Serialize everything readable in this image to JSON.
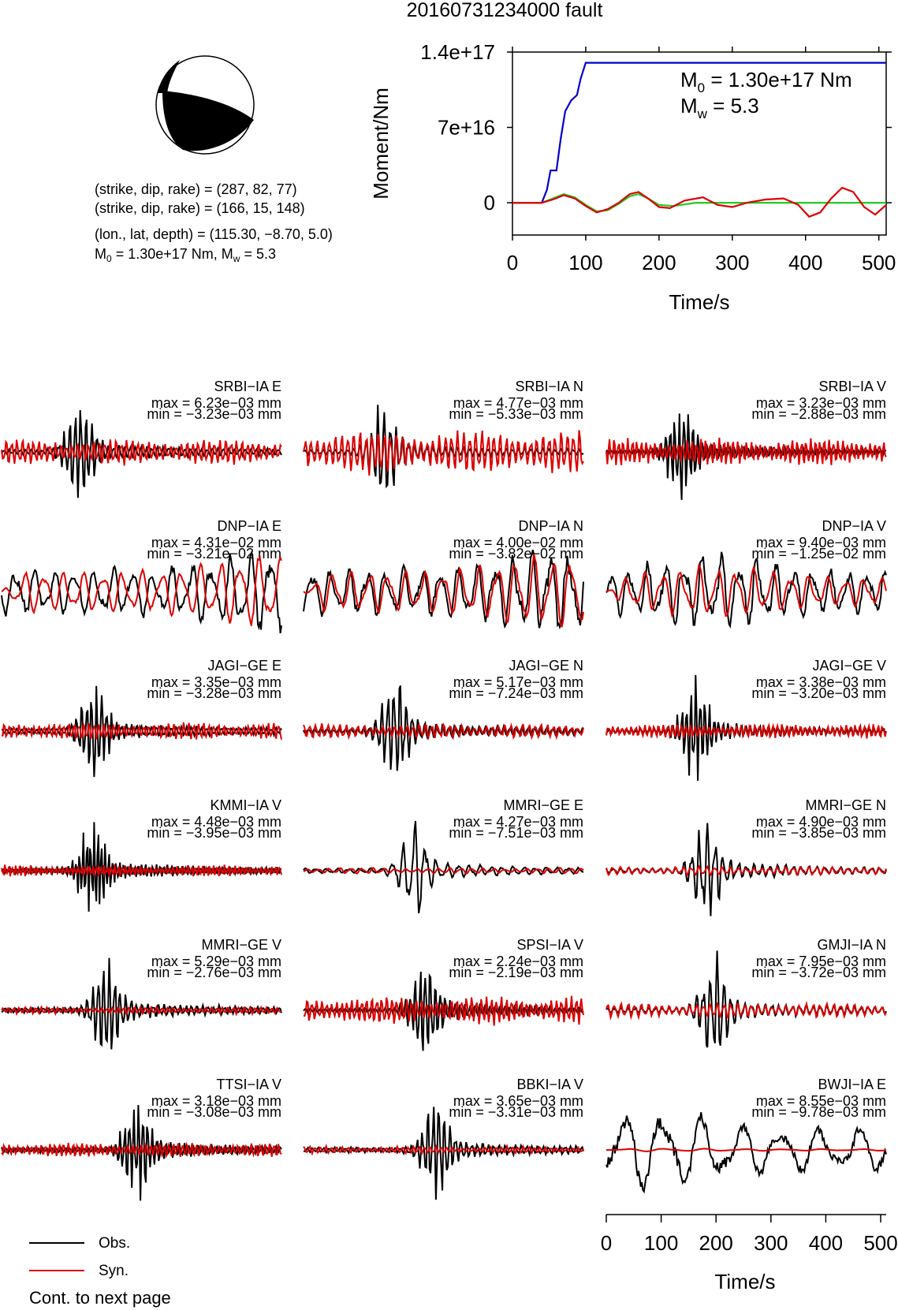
{
  "title": "20160731234000 fault",
  "mechanism": {
    "line1": "(strike, dip, rake) = (287, 82, 77)",
    "line2": "(strike, dip, rake) = (166, 15, 148)",
    "line3": "(lon., lat, depth) = (115.30, −8.70, 5.0)",
    "line4_m0": "M",
    "line4_sub0": "0",
    "line4_mid": " = 1.30e+17 Nm, M",
    "line4_subw": "w",
    "line4_end": " = 5.3"
  },
  "chart_data": [
    {
      "type": "line",
      "name": "moment-function",
      "ylabel": "Moment/Nm",
      "xlabel": "Time/s",
      "xlim": [
        0,
        510
      ],
      "ylim": [
        -3e+16,
        1.4e+17
      ],
      "xticks": [
        "0",
        "100",
        "200",
        "300",
        "400",
        "500"
      ],
      "xtick_values": [
        0,
        100,
        200,
        300,
        400,
        500
      ],
      "yticks": [
        "0",
        "7e+16",
        "1.4e+17"
      ],
      "ytick_values": [
        0,
        7e+16,
        1.4e+17
      ],
      "annotation": {
        "m0_prefix": "M",
        "m0_sub": "0",
        "m0_value": " = 1.30e+17 Nm",
        "mw_prefix": "M",
        "mw_sub": "w",
        "mw_value": " = 5.3"
      },
      "series": [
        {
          "color": "#0000cc",
          "x": [
            0,
            40,
            47,
            52,
            60,
            66,
            72,
            80,
            88,
            93,
            100,
            510
          ],
          "y": [
            0,
            0,
            1.2e+16,
            3e+16,
            3e+16,
            6e+16,
            8.5e+16,
            9.5e+16,
            1e+17,
            1.15e+17,
            1.3e+17,
            1.3e+17
          ]
        },
        {
          "color": "#22cc22",
          "x": [
            0,
            40,
            55,
            70,
            85,
            100,
            115,
            130,
            145,
            160,
            172,
            185,
            200,
            220,
            250,
            280,
            510
          ],
          "y": [
            0,
            0,
            4000000000000000.0,
            8000000000000000.0,
            5000000000000000.0,
            -2000000000000000.0,
            -8000000000000000.0,
            -7000000000000000.0,
            -1000000000000000.0,
            6000000000000000.0,
            8000000000000000.0,
            4000000000000000.0,
            -2000000000000000.0,
            -3000000000000000.0,
            0,
            0,
            0
          ]
        },
        {
          "color": "#dd0000",
          "x": [
            0,
            40,
            55,
            70,
            85,
            100,
            115,
            130,
            145,
            160,
            172,
            185,
            200,
            215,
            235,
            260,
            280,
            300,
            320,
            345,
            370,
            390,
            405,
            420,
            435,
            450,
            465,
            480,
            495,
            510
          ],
          "y": [
            0,
            0,
            3000000000000000.0,
            7000000000000000.0,
            4000000000000000.0,
            -3000000000000000.0,
            -9000000000000000.0,
            -6000000000000000.0,
            0,
            8000000000000000.0,
            1e+16,
            4000000000000000.0,
            -4000000000000000.0,
            -5000000000000000.0,
            2000000000000000.0,
            5000000000000000.0,
            -2000000000000000.0,
            -4000000000000000.0,
            0,
            3000000000000000.0,
            4000000000000000.0,
            -2000000000000000.0,
            -1.3e+16,
            -9000000000000000.0,
            4000000000000000.0,
            1.4e+16,
            1e+16,
            -4000000000000000.0,
            -1.1e+16,
            -2000000000000000.0
          ]
        }
      ]
    },
    {
      "type": "line",
      "name": "seismograms",
      "xlabel": "Time/s",
      "xlim": [
        0,
        510
      ],
      "xticks": [
        "0",
        "100",
        "200",
        "300",
        "400",
        "500"
      ],
      "xtick_values": [
        0,
        100,
        200,
        300,
        400,
        500
      ],
      "legend": [
        {
          "label": "Obs.",
          "color": "#000000"
        },
        {
          "label": "Syn.",
          "color": "#dd0000"
        }
      ],
      "series": [
        {
          "name": "SRBI−IA E",
          "max": "max = 6.23e−03 mm",
          "min": "min = −3.23e−03 mm",
          "obs_amp": 0.6,
          "syn_amp": 0.18,
          "peak_time": 140,
          "freq": 0.1,
          "seed": 1
        },
        {
          "name": "SRBI−IA N",
          "max": "max = 4.77e−03 mm",
          "min": "min = −5.33e−03 mm",
          "obs_amp": 0.6,
          "syn_amp": 0.3,
          "peak_time": 145,
          "freq": 0.09,
          "seed": 2
        },
        {
          "name": "SRBI−IA V",
          "max": "max = 3.23e−03 mm",
          "min": "min = −2.88e−03 mm",
          "obs_amp": 0.6,
          "syn_amp": 0.2,
          "peak_time": 135,
          "freq": 0.12,
          "seed": 3
        },
        {
          "name": "DNP−IA E",
          "max": "max = 4.31e−02 mm",
          "min": "min = −3.21e−02 mm",
          "obs_amp": 0.55,
          "syn_amp": 0.5,
          "peak_time": 500,
          "freq": 0.028,
          "seed": 4
        },
        {
          "name": "DNP−IA N",
          "max": "max = 4.00e−02 mm",
          "min": "min = −3.82e−02 mm",
          "obs_amp": 0.55,
          "syn_amp": 0.5,
          "peak_time": 460,
          "freq": 0.03,
          "seed": 5
        },
        {
          "name": "DNP−IA V",
          "max": "max = 9.40e−03 mm",
          "min": "min = −1.25e−02 mm",
          "obs_amp": 0.5,
          "syn_amp": 0.35,
          "peak_time": 200,
          "freq": 0.03,
          "seed": 6
        },
        {
          "name": "JAGI−GE E",
          "max": "max = 3.35e−03 mm",
          "min": "min = −3.28e−03 mm",
          "obs_amp": 0.6,
          "syn_amp": 0.12,
          "peak_time": 165,
          "freq": 0.11,
          "seed": 7
        },
        {
          "name": "JAGI−GE N",
          "max": "max = 5.17e−03 mm",
          "min": "min = −7.24e−03 mm",
          "obs_amp": 0.6,
          "syn_amp": 0.1,
          "peak_time": 165,
          "freq": 0.09,
          "seed": 8
        },
        {
          "name": "JAGI−GE V",
          "max": "max = 3.38e−03 mm",
          "min": "min = −3.20e−03 mm",
          "obs_amp": 0.6,
          "syn_amp": 0.1,
          "peak_time": 160,
          "freq": 0.12,
          "seed": 9
        },
        {
          "name": "KMMI−IA V",
          "max": "max = 4.48e−03 mm",
          "min": "min = −3.95e−03 mm",
          "obs_amp": 0.6,
          "syn_amp": 0.08,
          "peak_time": 165,
          "freq": 0.15,
          "seed": 10
        },
        {
          "name": "MMRI−GE E",
          "max": "max = 4.27e−03 mm",
          "min": "min = −7.51e−03 mm",
          "obs_amp": 0.55,
          "syn_amp": 0.04,
          "peak_time": 200,
          "freq": 0.05,
          "seed": 11
        },
        {
          "name": "MMRI−GE N",
          "max": "max = 4.90e−03 mm",
          "min": "min = −3.85e−03 mm",
          "obs_amp": 0.6,
          "syn_amp": 0.06,
          "peak_time": 180,
          "freq": 0.07,
          "seed": 12
        },
        {
          "name": "MMRI−GE V",
          "max": "max = 5.29e−03 mm",
          "min": "min = −2.76e−03 mm",
          "obs_amp": 0.6,
          "syn_amp": 0.05,
          "peak_time": 190,
          "freq": 0.1,
          "seed": 13
        },
        {
          "name": "SPSI−IA V",
          "max": "max = 2.24e−03 mm",
          "min": "min = −2.19e−03 mm",
          "obs_amp": 0.6,
          "syn_amp": 0.2,
          "peak_time": 220,
          "freq": 0.11,
          "seed": 14
        },
        {
          "name": "GMJI−IA N",
          "max": "max = 7.95e−03 mm",
          "min": "min = −3.72e−03 mm",
          "obs_amp": 0.6,
          "syn_amp": 0.1,
          "peak_time": 195,
          "freq": 0.08,
          "seed": 15
        },
        {
          "name": "TTSI−IA V",
          "max": "max = 3.18e−03 mm",
          "min": "min = −3.08e−03 mm",
          "obs_amp": 0.6,
          "syn_amp": 0.1,
          "peak_time": 245,
          "freq": 0.12,
          "seed": 16
        },
        {
          "name": "BBKI−IA V",
          "max": "max = 3.65e−03 mm",
          "min": "min = −3.31e−03 mm",
          "obs_amp": 0.6,
          "syn_amp": 0.05,
          "peak_time": 240,
          "freq": 0.1,
          "seed": 17
        },
        {
          "name": "BWJI−IA E",
          "max": "max = 8.55e−03 mm",
          "min": "min = −9.78e−03 mm",
          "obs_amp": 0.55,
          "syn_amp": 0.02,
          "peak_time": 80,
          "freq": 0.014,
          "seed": 18
        }
      ]
    }
  ],
  "footer": "Cont. to next page"
}
